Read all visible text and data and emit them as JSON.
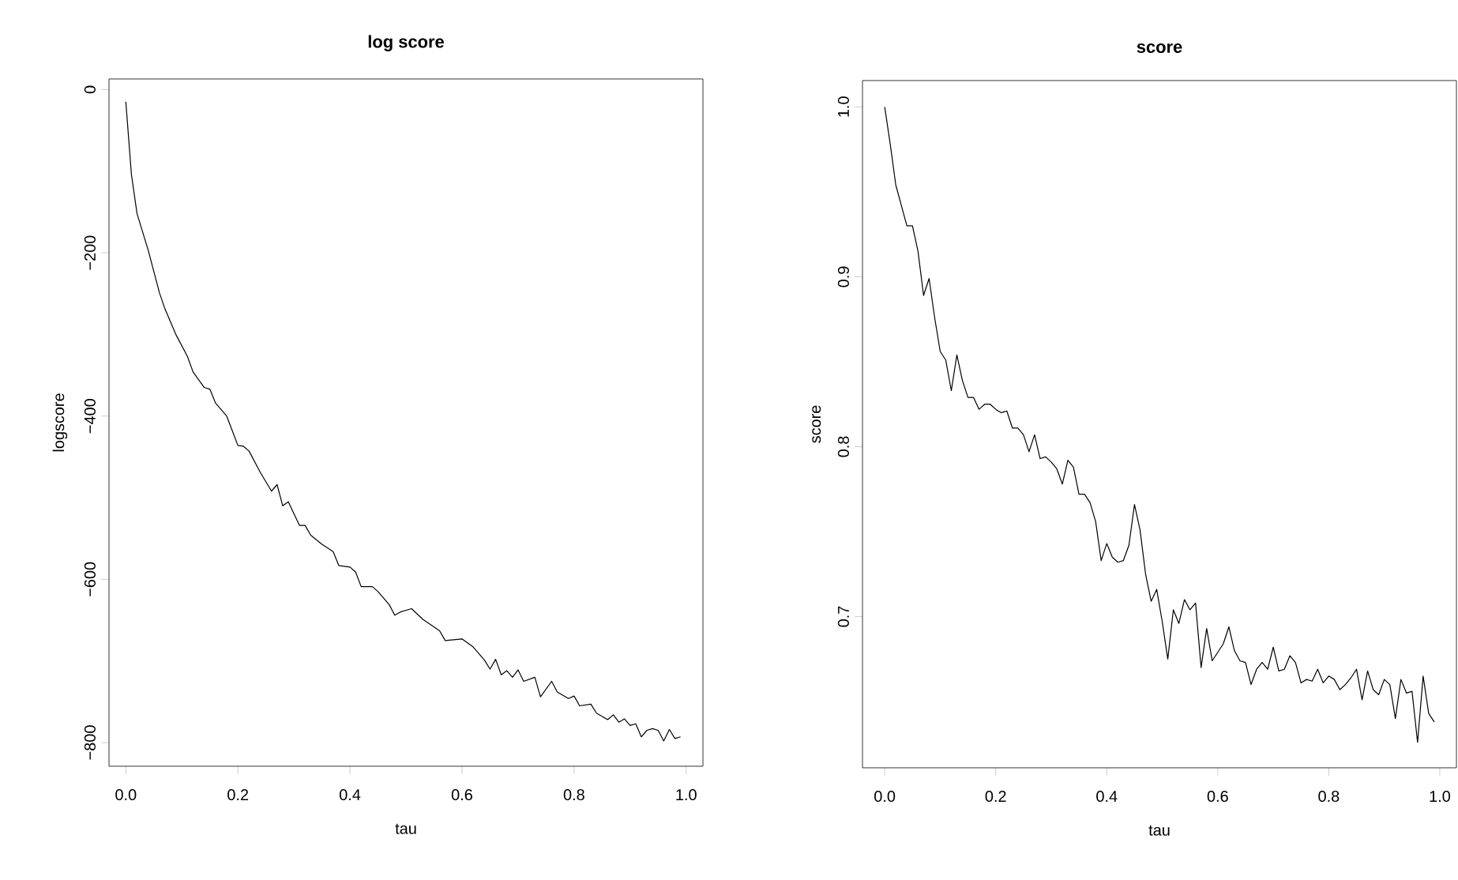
{
  "chart_data": [
    {
      "type": "line",
      "title": "log score",
      "xlabel": "tau",
      "ylabel": "logscore",
      "color": "#000000",
      "line_style": "solid",
      "x": [
        0,
        0.01,
        0.02,
        0.04,
        0.06,
        0.07,
        0.09,
        0.11,
        0.12,
        0.14,
        0.15,
        0.16,
        0.18,
        0.19,
        0.2,
        0.21,
        0.22,
        0.24,
        0.26,
        0.27,
        0.28,
        0.29,
        0.31,
        0.32,
        0.33,
        0.35,
        0.37,
        0.38,
        0.4,
        0.41,
        0.42,
        0.44,
        0.45,
        0.47,
        0.48,
        0.49,
        0.51,
        0.53,
        0.56,
        0.57,
        0.6,
        0.62,
        0.64,
        0.65,
        0.66,
        0.67,
        0.68,
        0.69,
        0.7,
        0.71,
        0.73,
        0.74,
        0.76,
        0.77,
        0.79,
        0.8,
        0.81,
        0.83,
        0.84,
        0.86,
        0.87,
        0.88,
        0.89,
        0.9,
        0.91,
        0.92,
        0.93,
        0.94,
        0.95,
        0.96,
        0.97,
        0.98,
        0.99
      ],
      "values": [
        -15,
        -104,
        -152,
        -197,
        -249,
        -269,
        -301,
        -327,
        -346,
        -365,
        -367,
        -384,
        -400,
        -418,
        -436,
        -437,
        -443,
        -469,
        -492,
        -484,
        -510,
        -505,
        -534,
        -534,
        -546,
        -557,
        -566,
        -583,
        -585,
        -591,
        -609,
        -609,
        -615,
        -631,
        -644,
        -640,
        -636,
        -649,
        -663,
        -675,
        -673,
        -683,
        -699,
        -710,
        -698,
        -717,
        -712,
        -720,
        -711,
        -725,
        -720,
        -744,
        -725,
        -738,
        -746,
        -743,
        -755,
        -753,
        -764,
        -772,
        -766,
        -775,
        -771,
        -779,
        -777,
        -793,
        -785,
        -783,
        -785,
        -798,
        -784,
        -795,
        -793
      ],
      "xlim": [
        -0.03,
        1.03
      ],
      "ylim": [
        -829,
        13
      ],
      "xticks": [
        {
          "value": 0,
          "label": "0.0"
        },
        {
          "value": 0.2,
          "label": "0.2"
        },
        {
          "value": 0.4,
          "label": "0.4"
        },
        {
          "value": 0.6,
          "label": "0.6"
        },
        {
          "value": 0.8,
          "label": "0.8"
        },
        {
          "value": 1,
          "label": "1.0"
        }
      ],
      "yticks": [
        {
          "value": -800,
          "label": "−800"
        },
        {
          "value": -600,
          "label": "−600"
        },
        {
          "value": -400,
          "label": "−400"
        },
        {
          "value": -200,
          "label": "−200"
        },
        {
          "value": 0,
          "label": "0"
        }
      ]
    },
    {
      "type": "line",
      "title": "score",
      "xlabel": "tau",
      "ylabel": "score",
      "color": "#000000",
      "line_style": "solid",
      "x": [
        0,
        0.01,
        0.02,
        0.03,
        0.04,
        0.05,
        0.06,
        0.07,
        0.08,
        0.09,
        0.1,
        0.11,
        0.12,
        0.13,
        0.14,
        0.15,
        0.16,
        0.17,
        0.18,
        0.19,
        0.2,
        0.21,
        0.22,
        0.23,
        0.24,
        0.25,
        0.26,
        0.27,
        0.28,
        0.29,
        0.3,
        0.31,
        0.32,
        0.33,
        0.34,
        0.35,
        0.36,
        0.37,
        0.38,
        0.39,
        0.4,
        0.41,
        0.42,
        0.43,
        0.44,
        0.45,
        0.46,
        0.47,
        0.48,
        0.49,
        0.5,
        0.51,
        0.52,
        0.53,
        0.54,
        0.55,
        0.56,
        0.57,
        0.58,
        0.59,
        0.6,
        0.61,
        0.62,
        0.63,
        0.64,
        0.65,
        0.66,
        0.67,
        0.68,
        0.69,
        0.7,
        0.71,
        0.72,
        0.73,
        0.74,
        0.75,
        0.76,
        0.77,
        0.78,
        0.79,
        0.8,
        0.81,
        0.82,
        0.83,
        0.84,
        0.85,
        0.86,
        0.87,
        0.88,
        0.89,
        0.9,
        0.91,
        0.92,
        0.93,
        0.94,
        0.95,
        0.96,
        0.97,
        0.98,
        0.99
      ],
      "values": [
        1.0,
        0.978,
        0.954,
        0.942,
        0.93,
        0.93,
        0.915,
        0.889,
        0.899,
        0.876,
        0.856,
        0.851,
        0.833,
        0.854,
        0.839,
        0.829,
        0.829,
        0.822,
        0.825,
        0.825,
        0.822,
        0.82,
        0.821,
        0.811,
        0.811,
        0.807,
        0.797,
        0.807,
        0.793,
        0.794,
        0.791,
        0.787,
        0.778,
        0.792,
        0.788,
        0.772,
        0.772,
        0.767,
        0.756,
        0.733,
        0.743,
        0.735,
        0.732,
        0.733,
        0.742,
        0.766,
        0.751,
        0.725,
        0.709,
        0.716,
        0.697,
        0.675,
        0.704,
        0.696,
        0.71,
        0.704,
        0.708,
        0.67,
        0.693,
        0.674,
        0.679,
        0.684,
        0.694,
        0.68,
        0.674,
        0.673,
        0.66,
        0.669,
        0.673,
        0.669,
        0.682,
        0.668,
        0.669,
        0.677,
        0.673,
        0.661,
        0.663,
        0.662,
        0.669,
        0.661,
        0.665,
        0.663,
        0.657,
        0.66,
        0.664,
        0.669,
        0.651,
        0.668,
        0.657,
        0.654,
        0.663,
        0.66,
        0.64,
        0.663,
        0.655,
        0.656,
        0.626,
        0.665,
        0.643,
        0.638
      ],
      "xlim": [
        -0.04,
        1.03
      ],
      "ylim": [
        0.611,
        1.0155
      ],
      "xticks": [
        {
          "value": 0,
          "label": "0.0"
        },
        {
          "value": 0.2,
          "label": "0.2"
        },
        {
          "value": 0.4,
          "label": "0.4"
        },
        {
          "value": 0.6,
          "label": "0.6"
        },
        {
          "value": 0.8,
          "label": "0.8"
        },
        {
          "value": 1,
          "label": "1.0"
        }
      ],
      "yticks": [
        {
          "value": 0.7,
          "label": "0.7"
        },
        {
          "value": 0.8,
          "label": "0.8"
        },
        {
          "value": 0.9,
          "label": "0.9"
        },
        {
          "value": 1.0,
          "label": "1.0"
        }
      ]
    }
  ]
}
